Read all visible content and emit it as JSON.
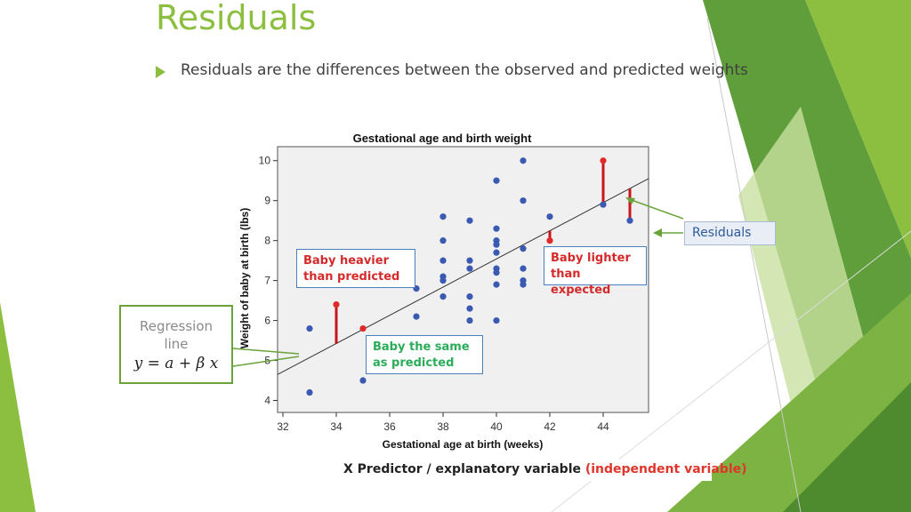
{
  "slide": {
    "title": "Residuals",
    "bullet_text": "Residuals are the differences between the observed and predicted weights",
    "accent_color": "#8cbf3f"
  },
  "callouts": {
    "heavier": [
      "Baby heavier",
      "than predicted"
    ],
    "lighter": [
      "Baby lighter",
      "than expected"
    ],
    "same": [
      "Baby the same",
      "as predicted"
    ],
    "residuals": "Residuals",
    "regression_label": [
      "Regression",
      "line"
    ],
    "regression_equation": "y = a + β x",
    "x_predictor": "X Predictor / explanatory variable ",
    "x_predictor_paren": "(independent variable)"
  },
  "chart_data": {
    "type": "scatter",
    "title": "Gestational age and birth weight",
    "xlabel": "Gestational age at birth (weeks)",
    "ylabel": "Weight of baby at birth (lbs)",
    "xlim": [
      31.8,
      45.7
    ],
    "ylim": [
      3.7,
      10.35
    ],
    "xticks": [
      32,
      34,
      36,
      38,
      40,
      42,
      44
    ],
    "yticks": [
      4,
      5,
      6,
      7,
      8,
      9,
      10
    ],
    "grid": false,
    "colors": {
      "points": "#3a59b0",
      "highlight": "#e02a2a",
      "residual": "#c8161d",
      "plot_bg": "#f0f0f0"
    },
    "regression_line": {
      "x": [
        31.8,
        45.7
      ],
      "y": [
        4.65,
        9.55
      ]
    },
    "points": [
      {
        "x": 33,
        "y": 5.8
      },
      {
        "x": 33,
        "y": 4.2
      },
      {
        "x": 35,
        "y": 4.5
      },
      {
        "x": 37,
        "y": 6.8
      },
      {
        "x": 37,
        "y": 6.1
      },
      {
        "x": 38,
        "y": 8.6
      },
      {
        "x": 38,
        "y": 8.0
      },
      {
        "x": 38,
        "y": 7.5
      },
      {
        "x": 38,
        "y": 7.1
      },
      {
        "x": 38,
        "y": 7.0
      },
      {
        "x": 38,
        "y": 6.6
      },
      {
        "x": 39,
        "y": 8.5
      },
      {
        "x": 39,
        "y": 7.5
      },
      {
        "x": 39,
        "y": 7.3
      },
      {
        "x": 39,
        "y": 6.6
      },
      {
        "x": 39,
        "y": 6.3
      },
      {
        "x": 39,
        "y": 6.0
      },
      {
        "x": 40,
        "y": 9.5
      },
      {
        "x": 40,
        "y": 8.3
      },
      {
        "x": 40,
        "y": 8.0
      },
      {
        "x": 40,
        "y": 7.9
      },
      {
        "x": 40,
        "y": 7.7
      },
      {
        "x": 40,
        "y": 7.3
      },
      {
        "x": 40,
        "y": 7.2
      },
      {
        "x": 40,
        "y": 6.9
      },
      {
        "x": 40,
        "y": 6.0
      },
      {
        "x": 41,
        "y": 10.0
      },
      {
        "x": 41,
        "y": 9.0
      },
      {
        "x": 41,
        "y": 7.8
      },
      {
        "x": 41,
        "y": 7.3
      },
      {
        "x": 41,
        "y": 7.0
      },
      {
        "x": 41,
        "y": 6.9
      },
      {
        "x": 42,
        "y": 8.6
      },
      {
        "x": 44,
        "y": 8.9
      },
      {
        "x": 45,
        "y": 8.5
      }
    ],
    "highlighted_points": [
      {
        "x": 34,
        "y": 6.4
      },
      {
        "x": 35,
        "y": 5.8
      },
      {
        "x": 42,
        "y": 8.0
      },
      {
        "x": 44,
        "y": 10.0
      }
    ],
    "residuals": [
      {
        "x": 34,
        "observed": 6.4,
        "predicted": 5.42
      },
      {
        "x": 42,
        "observed": 8.0,
        "predicted": 8.25
      },
      {
        "x": 44,
        "observed": 10.0,
        "predicted": 8.96
      },
      {
        "x": 45,
        "observed": 8.5,
        "predicted": 9.3
      }
    ]
  }
}
